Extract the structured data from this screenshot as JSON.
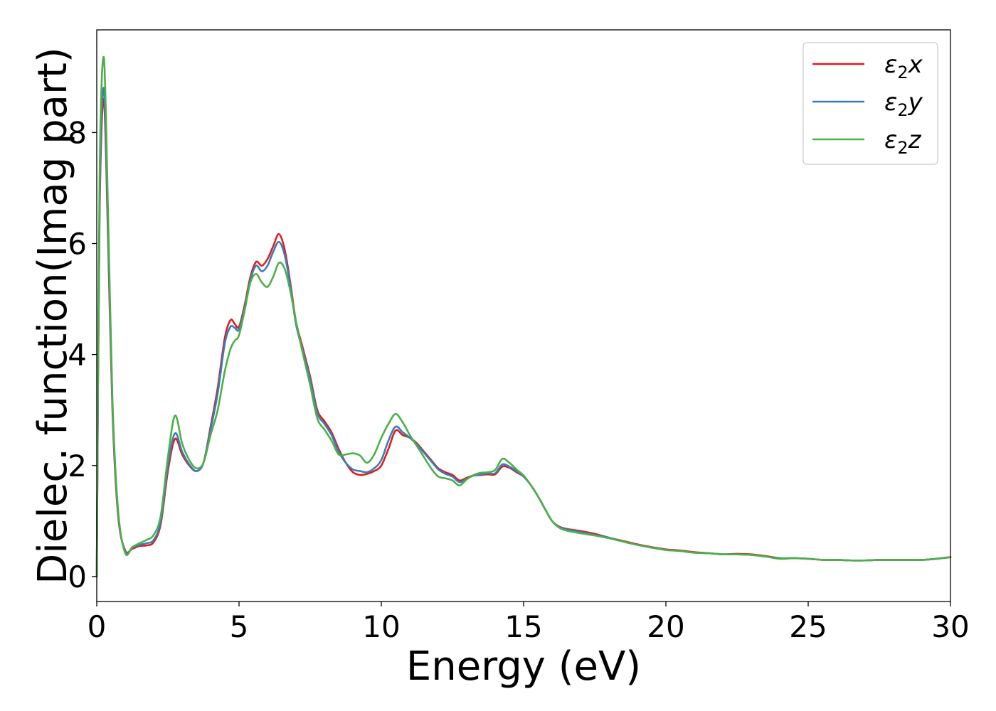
{
  "chart_data": {
    "type": "line",
    "title": "",
    "xlabel": "Energy (eV)",
    "ylabel": "Dielec. function(Imag part)",
    "xlim": [
      0,
      30
    ],
    "ylim": [
      -0.45,
      9.85
    ],
    "xticks": [
      0,
      5,
      10,
      15,
      20,
      25,
      30
    ],
    "yticks": [
      0,
      2,
      4,
      6,
      8
    ],
    "grid": false,
    "legend_position": "top-right",
    "series": [
      {
        "name": "ε2x",
        "legend": {
          "symbol": "ε",
          "subscript": "2",
          "axis": "x"
        },
        "color": "#e41a1c",
        "points": [
          [
            0.0,
            0.0
          ],
          [
            0.1,
            6.5
          ],
          [
            0.25,
            8.6
          ],
          [
            0.4,
            6.0
          ],
          [
            0.55,
            3.0
          ],
          [
            0.75,
            1.1
          ],
          [
            1.0,
            0.47
          ],
          [
            1.25,
            0.5
          ],
          [
            1.5,
            0.55
          ],
          [
            1.75,
            0.56
          ],
          [
            2.0,
            0.62
          ],
          [
            2.25,
            0.95
          ],
          [
            2.5,
            1.9
          ],
          [
            2.75,
            2.48
          ],
          [
            3.0,
            2.2
          ],
          [
            3.25,
            2.0
          ],
          [
            3.5,
            1.9
          ],
          [
            3.75,
            2.05
          ],
          [
            4.0,
            2.7
          ],
          [
            4.25,
            3.4
          ],
          [
            4.5,
            4.3
          ],
          [
            4.7,
            4.62
          ],
          [
            4.85,
            4.55
          ],
          [
            5.0,
            4.5
          ],
          [
            5.2,
            4.9
          ],
          [
            5.4,
            5.4
          ],
          [
            5.6,
            5.67
          ],
          [
            5.8,
            5.6
          ],
          [
            6.0,
            5.72
          ],
          [
            6.2,
            5.95
          ],
          [
            6.4,
            6.17
          ],
          [
            6.6,
            5.9
          ],
          [
            6.8,
            5.3
          ],
          [
            7.0,
            4.6
          ],
          [
            7.25,
            4.1
          ],
          [
            7.5,
            3.6
          ],
          [
            7.75,
            3.0
          ],
          [
            8.0,
            2.8
          ],
          [
            8.25,
            2.6
          ],
          [
            8.5,
            2.3
          ],
          [
            8.75,
            2.05
          ],
          [
            9.0,
            1.88
          ],
          [
            9.25,
            1.83
          ],
          [
            9.5,
            1.85
          ],
          [
            9.75,
            1.9
          ],
          [
            10.0,
            2.0
          ],
          [
            10.25,
            2.3
          ],
          [
            10.5,
            2.63
          ],
          [
            10.75,
            2.55
          ],
          [
            11.0,
            2.5
          ],
          [
            11.25,
            2.4
          ],
          [
            11.5,
            2.25
          ],
          [
            11.75,
            2.1
          ],
          [
            12.0,
            1.95
          ],
          [
            12.25,
            1.88
          ],
          [
            12.5,
            1.83
          ],
          [
            12.75,
            1.73
          ],
          [
            13.0,
            1.78
          ],
          [
            13.25,
            1.82
          ],
          [
            13.5,
            1.83
          ],
          [
            13.75,
            1.84
          ],
          [
            14.0,
            1.84
          ],
          [
            14.25,
            1.98
          ],
          [
            14.5,
            1.96
          ],
          [
            14.75,
            1.88
          ],
          [
            15.0,
            1.8
          ],
          [
            15.25,
            1.65
          ],
          [
            15.5,
            1.45
          ],
          [
            15.75,
            1.22
          ],
          [
            16.0,
            1.0
          ],
          [
            16.25,
            0.9
          ],
          [
            16.5,
            0.86
          ],
          [
            17.0,
            0.82
          ],
          [
            17.5,
            0.77
          ],
          [
            18.0,
            0.7
          ],
          [
            18.5,
            0.64
          ],
          [
            19.0,
            0.58
          ],
          [
            19.5,
            0.53
          ],
          [
            20.0,
            0.49
          ],
          [
            20.5,
            0.47
          ],
          [
            21.0,
            0.44
          ],
          [
            21.5,
            0.42
          ],
          [
            22.0,
            0.4
          ],
          [
            22.5,
            0.41
          ],
          [
            23.0,
            0.4
          ],
          [
            23.5,
            0.37
          ],
          [
            24.0,
            0.33
          ],
          [
            24.5,
            0.33
          ],
          [
            25.0,
            0.32
          ],
          [
            25.5,
            0.3
          ],
          [
            26.0,
            0.3
          ],
          [
            26.5,
            0.29
          ],
          [
            27.0,
            0.29
          ],
          [
            27.5,
            0.3
          ],
          [
            28.0,
            0.3
          ],
          [
            28.5,
            0.3
          ],
          [
            29.0,
            0.3
          ],
          [
            29.5,
            0.32
          ],
          [
            30.0,
            0.35
          ]
        ]
      },
      {
        "name": "ε2y",
        "legend": {
          "symbol": "ε",
          "subscript": "2",
          "axis": "y"
        },
        "color": "#377eb8",
        "points": [
          [
            0.0,
            0.0
          ],
          [
            0.1,
            6.7
          ],
          [
            0.25,
            8.8
          ],
          [
            0.4,
            6.2
          ],
          [
            0.55,
            3.1
          ],
          [
            0.75,
            1.15
          ],
          [
            1.0,
            0.45
          ],
          [
            1.25,
            0.52
          ],
          [
            1.5,
            0.57
          ],
          [
            1.75,
            0.6
          ],
          [
            2.0,
            0.66
          ],
          [
            2.25,
            1.0
          ],
          [
            2.5,
            2.0
          ],
          [
            2.75,
            2.58
          ],
          [
            3.0,
            2.25
          ],
          [
            3.25,
            2.02
          ],
          [
            3.5,
            1.9
          ],
          [
            3.75,
            2.05
          ],
          [
            4.0,
            2.65
          ],
          [
            4.25,
            3.3
          ],
          [
            4.5,
            4.2
          ],
          [
            4.7,
            4.5
          ],
          [
            4.85,
            4.48
          ],
          [
            5.0,
            4.45
          ],
          [
            5.2,
            4.85
          ],
          [
            5.4,
            5.35
          ],
          [
            5.6,
            5.6
          ],
          [
            5.8,
            5.5
          ],
          [
            6.0,
            5.6
          ],
          [
            6.2,
            5.85
          ],
          [
            6.4,
            6.03
          ],
          [
            6.6,
            5.8
          ],
          [
            6.8,
            5.25
          ],
          [
            7.0,
            4.55
          ],
          [
            7.25,
            4.05
          ],
          [
            7.5,
            3.55
          ],
          [
            7.75,
            2.95
          ],
          [
            8.0,
            2.75
          ],
          [
            8.25,
            2.55
          ],
          [
            8.5,
            2.25
          ],
          [
            8.75,
            2.05
          ],
          [
            9.0,
            1.93
          ],
          [
            9.25,
            1.9
          ],
          [
            9.5,
            1.88
          ],
          [
            9.75,
            1.95
          ],
          [
            10.0,
            2.1
          ],
          [
            10.25,
            2.45
          ],
          [
            10.5,
            2.7
          ],
          [
            10.75,
            2.6
          ],
          [
            11.0,
            2.5
          ],
          [
            11.25,
            2.38
          ],
          [
            11.5,
            2.23
          ],
          [
            11.75,
            2.08
          ],
          [
            12.0,
            1.93
          ],
          [
            12.25,
            1.85
          ],
          [
            12.5,
            1.8
          ],
          [
            12.75,
            1.7
          ],
          [
            13.0,
            1.76
          ],
          [
            13.25,
            1.82
          ],
          [
            13.5,
            1.84
          ],
          [
            13.75,
            1.86
          ],
          [
            14.0,
            1.86
          ],
          [
            14.25,
            2.02
          ],
          [
            14.5,
            1.98
          ],
          [
            14.75,
            1.9
          ],
          [
            15.0,
            1.8
          ],
          [
            15.25,
            1.65
          ],
          [
            15.5,
            1.45
          ],
          [
            15.75,
            1.22
          ],
          [
            16.0,
            1.0
          ],
          [
            16.25,
            0.89
          ],
          [
            16.5,
            0.85
          ],
          [
            17.0,
            0.8
          ],
          [
            17.5,
            0.75
          ],
          [
            18.0,
            0.7
          ],
          [
            18.5,
            0.63
          ],
          [
            19.0,
            0.57
          ],
          [
            19.5,
            0.52
          ],
          [
            20.0,
            0.48
          ],
          [
            20.5,
            0.46
          ],
          [
            21.0,
            0.43
          ],
          [
            21.5,
            0.42
          ],
          [
            22.0,
            0.4
          ],
          [
            22.5,
            0.4
          ],
          [
            23.0,
            0.39
          ],
          [
            23.5,
            0.36
          ],
          [
            24.0,
            0.33
          ],
          [
            24.5,
            0.33
          ],
          [
            25.0,
            0.32
          ],
          [
            25.5,
            0.3
          ],
          [
            26.0,
            0.3
          ],
          [
            26.5,
            0.29
          ],
          [
            27.0,
            0.29
          ],
          [
            27.5,
            0.3
          ],
          [
            28.0,
            0.3
          ],
          [
            28.5,
            0.3
          ],
          [
            29.0,
            0.3
          ],
          [
            29.5,
            0.32
          ],
          [
            30.0,
            0.35
          ]
        ]
      },
      {
        "name": "ε2z",
        "legend": {
          "symbol": "ε",
          "subscript": "2",
          "axis": "z"
        },
        "color": "#4daf4a",
        "points": [
          [
            0.0,
            0.0
          ],
          [
            0.1,
            7.2
          ],
          [
            0.25,
            9.35
          ],
          [
            0.4,
            6.5
          ],
          [
            0.55,
            3.2
          ],
          [
            0.75,
            1.2
          ],
          [
            1.0,
            0.42
          ],
          [
            1.25,
            0.53
          ],
          [
            1.5,
            0.6
          ],
          [
            1.75,
            0.66
          ],
          [
            2.0,
            0.75
          ],
          [
            2.25,
            1.1
          ],
          [
            2.5,
            2.15
          ],
          [
            2.75,
            2.9
          ],
          [
            3.0,
            2.4
          ],
          [
            3.25,
            2.1
          ],
          [
            3.5,
            1.95
          ],
          [
            3.75,
            2.05
          ],
          [
            4.0,
            2.55
          ],
          [
            4.25,
            3.0
          ],
          [
            4.5,
            3.7
          ],
          [
            4.7,
            4.1
          ],
          [
            4.85,
            4.25
          ],
          [
            5.0,
            4.35
          ],
          [
            5.2,
            4.8
          ],
          [
            5.4,
            5.3
          ],
          [
            5.6,
            5.45
          ],
          [
            5.8,
            5.3
          ],
          [
            6.0,
            5.22
          ],
          [
            6.2,
            5.4
          ],
          [
            6.4,
            5.65
          ],
          [
            6.6,
            5.55
          ],
          [
            6.8,
            5.15
          ],
          [
            7.0,
            4.6
          ],
          [
            7.25,
            4.0
          ],
          [
            7.5,
            3.45
          ],
          [
            7.75,
            2.85
          ],
          [
            8.0,
            2.65
          ],
          [
            8.25,
            2.45
          ],
          [
            8.5,
            2.2
          ],
          [
            8.75,
            2.2
          ],
          [
            9.0,
            2.22
          ],
          [
            9.25,
            2.18
          ],
          [
            9.5,
            2.05
          ],
          [
            9.75,
            2.2
          ],
          [
            10.0,
            2.5
          ],
          [
            10.25,
            2.75
          ],
          [
            10.5,
            2.93
          ],
          [
            10.75,
            2.78
          ],
          [
            11.0,
            2.55
          ],
          [
            11.25,
            2.35
          ],
          [
            11.5,
            2.15
          ],
          [
            11.75,
            1.95
          ],
          [
            12.0,
            1.8
          ],
          [
            12.25,
            1.77
          ],
          [
            12.5,
            1.73
          ],
          [
            12.75,
            1.64
          ],
          [
            13.0,
            1.75
          ],
          [
            13.25,
            1.83
          ],
          [
            13.5,
            1.87
          ],
          [
            13.75,
            1.88
          ],
          [
            14.0,
            1.92
          ],
          [
            14.25,
            2.12
          ],
          [
            14.5,
            2.05
          ],
          [
            14.75,
            1.93
          ],
          [
            15.0,
            1.82
          ],
          [
            15.25,
            1.65
          ],
          [
            15.5,
            1.45
          ],
          [
            15.75,
            1.22
          ],
          [
            16.0,
            1.0
          ],
          [
            16.25,
            0.88
          ],
          [
            16.5,
            0.83
          ],
          [
            17.0,
            0.78
          ],
          [
            17.5,
            0.74
          ],
          [
            18.0,
            0.69
          ],
          [
            18.5,
            0.63
          ],
          [
            19.0,
            0.57
          ],
          [
            19.5,
            0.52
          ],
          [
            20.0,
            0.48
          ],
          [
            20.5,
            0.46
          ],
          [
            21.0,
            0.43
          ],
          [
            21.5,
            0.42
          ],
          [
            22.0,
            0.4
          ],
          [
            22.5,
            0.4
          ],
          [
            23.0,
            0.39
          ],
          [
            23.5,
            0.36
          ],
          [
            24.0,
            0.32
          ],
          [
            24.5,
            0.33
          ],
          [
            25.0,
            0.32
          ],
          [
            25.5,
            0.3
          ],
          [
            26.0,
            0.3
          ],
          [
            26.5,
            0.29
          ],
          [
            27.0,
            0.29
          ],
          [
            27.5,
            0.3
          ],
          [
            28.0,
            0.3
          ],
          [
            28.5,
            0.3
          ],
          [
            29.0,
            0.3
          ],
          [
            29.5,
            0.32
          ],
          [
            30.0,
            0.35
          ]
        ]
      }
    ]
  }
}
